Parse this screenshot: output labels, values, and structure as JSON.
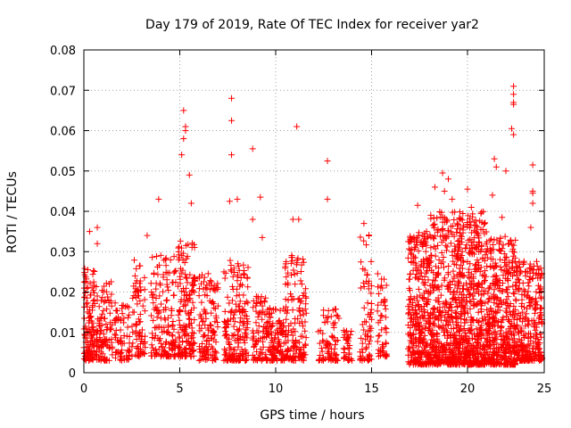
{
  "chart_data": {
    "type": "scatter",
    "title": "Day 179 of 2019, Rate Of TEC Index for receiver yar2",
    "xlabel": "GPS time / hours",
    "ylabel": "ROTI / TECUs",
    "xlim": [
      0,
      24
    ],
    "ylim": [
      0,
      0.08
    ],
    "xticks": [
      0,
      5,
      10,
      15,
      20
    ],
    "xtick_labels": [
      "0",
      "5",
      "10",
      "15",
      "20"
    ],
    "yticks": [
      0,
      0.01,
      0.02,
      0.03,
      0.04,
      0.05,
      0.06,
      0.07,
      0.08
    ],
    "ytick_labels": [
      "0",
      "0.01",
      "0.02",
      "0.03",
      "0.04",
      "0.05",
      "0.06",
      "0.07",
      "0.08"
    ],
    "xtick_label_24": "25",
    "grid": true,
    "marker": "+",
    "color": "#ff0000",
    "clusters": [
      {
        "x0": 0.0,
        "x1": 0.55,
        "ymin": 0.003,
        "ymax": 0.026,
        "n": 120
      },
      {
        "x0": 0.55,
        "x1": 1.5,
        "ymin": 0.003,
        "ymax": 0.023,
        "n": 110
      },
      {
        "x0": 1.6,
        "x1": 2.4,
        "ymin": 0.003,
        "ymax": 0.018,
        "n": 70
      },
      {
        "x0": 2.5,
        "x1": 3.2,
        "ymin": 0.004,
        "ymax": 0.028,
        "n": 80
      },
      {
        "x0": 3.5,
        "x1": 4.8,
        "ymin": 0.004,
        "ymax": 0.03,
        "n": 160
      },
      {
        "x0": 4.9,
        "x1": 5.8,
        "ymin": 0.004,
        "ymax": 0.033,
        "n": 160
      },
      {
        "x0": 6.0,
        "x1": 7.0,
        "ymin": 0.003,
        "ymax": 0.025,
        "n": 120
      },
      {
        "x0": 7.3,
        "x1": 8.6,
        "ymin": 0.003,
        "ymax": 0.028,
        "n": 180
      },
      {
        "x0": 8.8,
        "x1": 9.5,
        "ymin": 0.003,
        "ymax": 0.02,
        "n": 70
      },
      {
        "x0": 9.5,
        "x1": 10.5,
        "ymin": 0.003,
        "ymax": 0.016,
        "n": 130
      },
      {
        "x0": 10.5,
        "x1": 11.6,
        "ymin": 0.003,
        "ymax": 0.03,
        "n": 150
      },
      {
        "x0": 12.2,
        "x1": 13.3,
        "ymin": 0.003,
        "ymax": 0.016,
        "n": 80
      },
      {
        "x0": 13.5,
        "x1": 14.0,
        "ymin": 0.003,
        "ymax": 0.012,
        "n": 35
      },
      {
        "x0": 14.4,
        "x1": 15.0,
        "ymin": 0.003,
        "ymax": 0.035,
        "n": 70
      },
      {
        "x0": 15.3,
        "x1": 15.8,
        "ymin": 0.004,
        "ymax": 0.025,
        "n": 50
      },
      {
        "x0": 16.9,
        "x1": 18.0,
        "ymin": 0.002,
        "ymax": 0.035,
        "n": 320
      },
      {
        "x0": 18.0,
        "x1": 19.5,
        "ymin": 0.002,
        "ymax": 0.04,
        "n": 420
      },
      {
        "x0": 19.5,
        "x1": 21.0,
        "ymin": 0.002,
        "ymax": 0.04,
        "n": 480
      },
      {
        "x0": 21.0,
        "x1": 22.5,
        "ymin": 0.002,
        "ymax": 0.034,
        "n": 420
      },
      {
        "x0": 22.5,
        "x1": 23.9,
        "ymin": 0.003,
        "ymax": 0.028,
        "n": 300
      }
    ],
    "outliers": [
      {
        "x": 0.3,
        "y": 0.035
      },
      {
        "x": 0.7,
        "y": 0.036
      },
      {
        "x": 0.7,
        "y": 0.032
      },
      {
        "x": 3.3,
        "y": 0.034
      },
      {
        "x": 3.9,
        "y": 0.043
      },
      {
        "x": 5.2,
        "y": 0.065
      },
      {
        "x": 5.2,
        "y": 0.058
      },
      {
        "x": 5.3,
        "y": 0.06
      },
      {
        "x": 5.3,
        "y": 0.061
      },
      {
        "x": 5.1,
        "y": 0.054
      },
      {
        "x": 5.5,
        "y": 0.049
      },
      {
        "x": 5.6,
        "y": 0.042
      },
      {
        "x": 7.7,
        "y": 0.068
      },
      {
        "x": 7.7,
        "y": 0.0625
      },
      {
        "x": 7.7,
        "y": 0.054
      },
      {
        "x": 8.8,
        "y": 0.0555
      },
      {
        "x": 9.2,
        "y": 0.0435
      },
      {
        "x": 7.6,
        "y": 0.0425
      },
      {
        "x": 8.0,
        "y": 0.043
      },
      {
        "x": 8.8,
        "y": 0.038
      },
      {
        "x": 9.3,
        "y": 0.0335
      },
      {
        "x": 11.1,
        "y": 0.061
      },
      {
        "x": 10.9,
        "y": 0.038
      },
      {
        "x": 11.2,
        "y": 0.038
      },
      {
        "x": 12.7,
        "y": 0.0525
      },
      {
        "x": 12.7,
        "y": 0.043
      },
      {
        "x": 14.6,
        "y": 0.037
      },
      {
        "x": 17.4,
        "y": 0.0415
      },
      {
        "x": 18.7,
        "y": 0.0495
      },
      {
        "x": 19.0,
        "y": 0.048
      },
      {
        "x": 18.3,
        "y": 0.046
      },
      {
        "x": 18.8,
        "y": 0.045
      },
      {
        "x": 19.2,
        "y": 0.043
      },
      {
        "x": 20.0,
        "y": 0.0455
      },
      {
        "x": 21.4,
        "y": 0.053
      },
      {
        "x": 21.5,
        "y": 0.051
      },
      {
        "x": 21.3,
        "y": 0.044
      },
      {
        "x": 22.0,
        "y": 0.05
      },
      {
        "x": 22.4,
        "y": 0.071
      },
      {
        "x": 22.4,
        "y": 0.069
      },
      {
        "x": 22.4,
        "y": 0.067
      },
      {
        "x": 22.4,
        "y": 0.0665
      },
      {
        "x": 22.3,
        "y": 0.0605
      },
      {
        "x": 22.4,
        "y": 0.059
      },
      {
        "x": 23.4,
        "y": 0.0515
      },
      {
        "x": 23.4,
        "y": 0.045
      },
      {
        "x": 23.4,
        "y": 0.0445
      },
      {
        "x": 23.4,
        "y": 0.042
      },
      {
        "x": 23.3,
        "y": 0.036
      },
      {
        "x": 21.8,
        "y": 0.0385
      },
      {
        "x": 20.2,
        "y": 0.041
      },
      {
        "x": 19.6,
        "y": 0.038
      }
    ]
  }
}
